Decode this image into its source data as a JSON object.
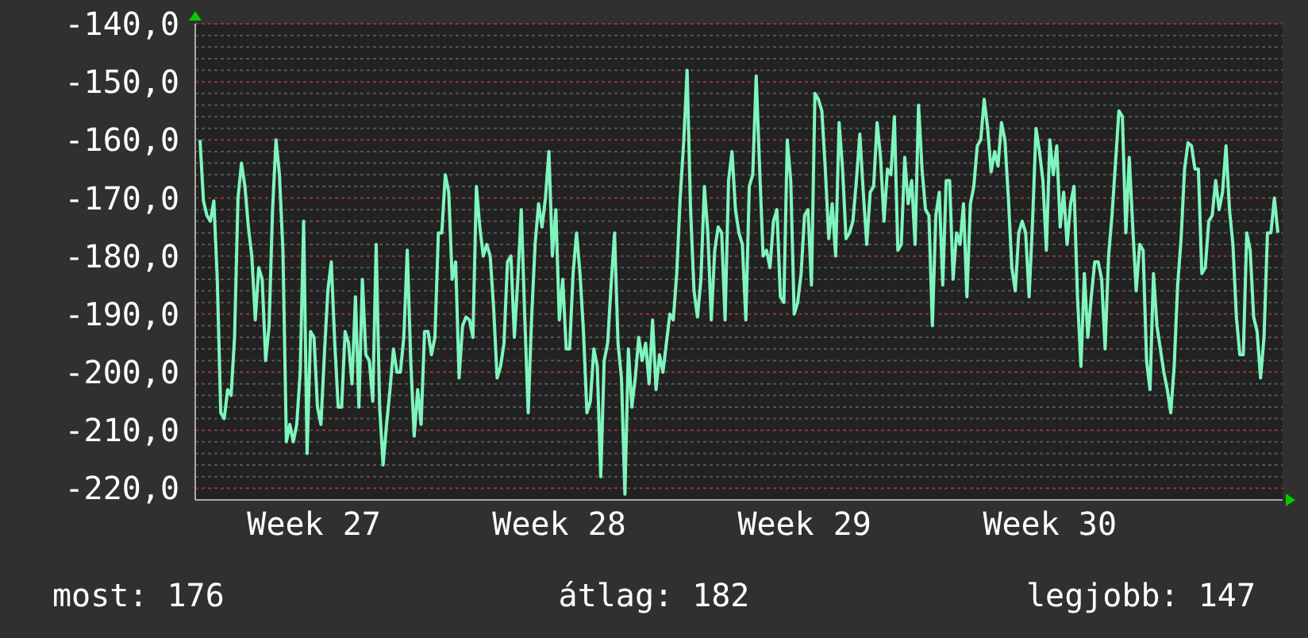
{
  "chart_data": {
    "type": "line",
    "annotations": [
      "most: 176",
      "átlag: 182",
      "legjobb: 147"
    ],
    "categories": [
      null,
      null,
      null,
      null,
      null,
      null,
      null,
      null,
      null,
      null,
      null,
      null,
      null,
      null,
      null,
      null,
      null,
      null,
      null,
      null,
      null,
      null,
      null,
      null,
      null,
      null,
      null,
      null,
      null,
      null,
      null,
      null,
      null,
      "Week 27",
      null,
      null,
      null,
      null,
      null,
      null,
      null,
      null,
      null,
      null,
      null,
      null,
      null,
      null,
      null,
      null,
      null,
      null,
      null,
      null,
      null,
      null,
      null,
      null,
      null,
      null,
      null,
      null,
      null,
      null,
      null,
      null,
      null,
      null,
      null,
      null,
      null,
      null,
      null,
      null,
      null,
      null,
      null,
      null,
      null,
      null,
      null,
      null,
      null,
      null,
      null,
      null,
      null,
      null,
      null,
      null,
      null,
      null,
      null,
      null,
      null,
      null,
      null,
      null,
      null,
      null,
      null,
      null,
      null,
      null,
      "Week 28",
      null,
      null,
      null,
      null,
      null,
      null,
      null,
      null,
      null,
      null,
      null,
      null,
      null,
      null,
      null,
      null,
      null,
      null,
      null,
      null,
      null,
      null,
      null,
      null,
      null,
      null,
      null,
      null,
      null,
      null,
      null,
      null,
      null,
      null,
      null,
      null,
      null,
      null,
      null,
      null,
      null,
      null,
      null,
      null,
      null,
      null,
      null,
      null,
      null,
      null,
      null,
      null,
      null,
      null,
      null,
      null,
      null,
      null,
      null,
      null,
      null,
      null,
      null,
      null,
      null,
      null,
      null,
      null,
      null,
      null,
      "Week 29",
      null,
      null,
      null,
      null,
      null,
      null,
      null,
      null,
      null,
      null,
      null,
      null,
      null,
      null,
      null,
      null,
      null,
      null,
      null,
      null,
      null,
      null,
      null,
      null,
      null,
      null,
      null,
      null,
      null,
      null,
      null,
      null,
      null,
      null,
      null,
      null,
      null,
      null,
      null,
      null,
      null,
      null,
      null,
      null,
      null,
      null,
      null,
      null,
      null,
      null,
      null,
      null,
      null,
      null,
      null,
      null,
      null,
      null,
      null,
      null,
      null,
      null,
      null,
      null,
      null,
      null,
      null,
      null,
      null,
      null,
      "Week 30",
      null,
      null,
      null,
      null,
      null,
      null,
      null,
      null,
      null,
      null,
      null,
      null,
      null,
      null,
      null,
      null,
      null,
      null,
      null,
      null,
      null,
      null,
      null,
      null,
      null,
      null,
      null,
      null,
      null,
      null,
      null,
      null,
      null,
      null,
      null,
      null,
      null,
      null,
      null,
      null,
      null,
      null,
      null,
      null,
      null,
      null,
      null,
      null,
      null,
      null,
      null,
      null,
      null,
      null,
      null,
      null,
      null,
      null,
      null,
      null,
      null,
      null,
      null,
      null,
      null,
      null
    ],
    "ylim": [
      -222,
      -140
    ],
    "yticks": [
      {
        "value": -140,
        "label": "-140,0"
      },
      {
        "value": -150,
        "label": "-150,0"
      },
      {
        "value": -160,
        "label": "-160,0"
      },
      {
        "value": -170,
        "label": "-170,0"
      },
      {
        "value": -180,
        "label": "-180,0"
      },
      {
        "value": -190,
        "label": "-190,0"
      },
      {
        "value": -200,
        "label": "-200,0"
      },
      {
        "value": -210,
        "label": "-210,0"
      },
      {
        "value": -220,
        "label": "-220,0"
      },
      {
        "value": -142,
        "label": null
      },
      {
        "value": -144,
        "label": null
      },
      {
        "value": -146,
        "label": null
      },
      {
        "value": -148,
        "label": null
      },
      {
        "value": -152,
        "label": null
      },
      {
        "value": -154,
        "label": null
      },
      {
        "value": -156,
        "label": null
      },
      {
        "value": -158,
        "label": null
      },
      {
        "value": -162,
        "label": null
      },
      {
        "value": -164,
        "label": null
      },
      {
        "value": -166,
        "label": null
      },
      {
        "value": -168,
        "label": null
      },
      {
        "value": -172,
        "label": null
      },
      {
        "value": -174,
        "label": null
      },
      {
        "value": -176,
        "label": null
      },
      {
        "value": -178,
        "label": null
      },
      {
        "value": -182,
        "label": null
      },
      {
        "value": -184,
        "label": null
      },
      {
        "value": -186,
        "label": null
      },
      {
        "value": -188,
        "label": null
      },
      {
        "value": -192,
        "label": null
      },
      {
        "value": -194,
        "label": null
      },
      {
        "value": -196,
        "label": null
      },
      {
        "value": -198,
        "label": null
      },
      {
        "value": -202,
        "label": null
      },
      {
        "value": -204,
        "label": null
      },
      {
        "value": -206,
        "label": null
      },
      {
        "value": -208,
        "label": null
      },
      {
        "value": -212,
        "label": null
      },
      {
        "value": -214,
        "label": null
      },
      {
        "value": -216,
        "label": null
      },
      {
        "value": -218,
        "label": null
      }
    ],
    "grid": "y",
    "series": [
      {
        "color": "#7ff5bd",
        "values": [
          -160,
          -170.5,
          -173,
          -174,
          -170.5,
          -184,
          -207,
          -208,
          -203,
          -204,
          -194,
          -170,
          -164,
          -168,
          -175,
          -180,
          -191,
          -182,
          -184,
          -198,
          -192,
          -172,
          -160,
          -166,
          -179,
          -212,
          -209,
          -212,
          -209,
          -200,
          -174,
          -214,
          -193,
          -194,
          -206,
          -209,
          -197,
          -186,
          -181,
          -195,
          -206,
          -206,
          -193,
          -195,
          -202,
          -187,
          -206,
          -184,
          -197,
          -198,
          -205,
          -178,
          -206,
          -216,
          -209,
          -203,
          -196,
          -200,
          -200,
          -194,
          -179,
          -198,
          -211,
          -203,
          -209,
          -193,
          -193,
          -197,
          -194,
          -176,
          -176,
          -166,
          -169,
          -184,
          -181,
          -201,
          -192,
          -190.5,
          -191,
          -194,
          -168,
          -175,
          -180,
          -178,
          -180,
          -189,
          -201,
          -199,
          -195,
          -181,
          -180,
          -194,
          -184,
          -172,
          -190.5,
          -207,
          -190.5,
          -178,
          -171,
          -175,
          -170,
          -162,
          -180,
          -172,
          -191,
          -184,
          -196,
          -196,
          -183,
          -176,
          -183,
          -193,
          -207,
          -205,
          -196,
          -199,
          -218,
          -198,
          -195,
          -185,
          -176,
          -195,
          -201,
          -221,
          -196,
          -206,
          -201,
          -194,
          -198,
          -195,
          -202,
          -191,
          -203,
          -197,
          -200,
          -195,
          -190,
          -191,
          -183,
          -170,
          -160.5,
          -148,
          -172,
          -186,
          -190.5,
          -184,
          -168,
          -176,
          -191,
          -179,
          -175,
          -176,
          -191,
          -167,
          -162,
          -172,
          -176,
          -178,
          -191,
          -168,
          -166,
          -149,
          -165,
          -180,
          -179,
          -182,
          -174,
          -172,
          -187,
          -188,
          -160,
          -167,
          -190,
          -188,
          -183,
          -173,
          -172,
          -185,
          -152,
          -153,
          -155,
          -165,
          -177,
          -171,
          -180,
          -157,
          -165,
          -177,
          -176,
          -174,
          -167,
          -159,
          -169,
          -178,
          -169,
          -168,
          -157,
          -163,
          -174,
          -165,
          -166,
          -156,
          -179,
          -178,
          -163,
          -171,
          -167,
          -178,
          -154,
          -165,
          -172,
          -173,
          -192,
          -173,
          -169,
          -185,
          -167,
          -167,
          -184,
          -176,
          -178,
          -171,
          -187,
          -171,
          -168,
          -161,
          -160,
          -153,
          -158,
          -165.5,
          -162,
          -164.5,
          -157,
          -160,
          -170,
          -182,
          -186,
          -176,
          -174,
          -176,
          -187,
          -174,
          -158,
          -162,
          -167,
          -179,
          -160,
          -166,
          -161,
          -175,
          -169,
          -178,
          -171,
          -168,
          -187,
          -199,
          -183,
          -194,
          -187,
          -181,
          -181,
          -184,
          -196,
          -180,
          -173,
          -164,
          -155,
          -156,
          -176,
          -163,
          -175,
          -186,
          -178,
          -179,
          -198,
          -203,
          -183,
          -192,
          -196,
          -200,
          -203,
          -207,
          -199,
          -185,
          -177,
          -165,
          -160.5,
          -161,
          -165,
          -165,
          -183,
          -182,
          -174,
          -173,
          -167,
          -172,
          -169,
          -161,
          -172,
          -178,
          -190.5,
          -197,
          -197,
          -176,
          -179,
          -190.5,
          -193,
          -201,
          -194,
          -176,
          -176,
          -170,
          -176
        ]
      }
    ]
  }
}
